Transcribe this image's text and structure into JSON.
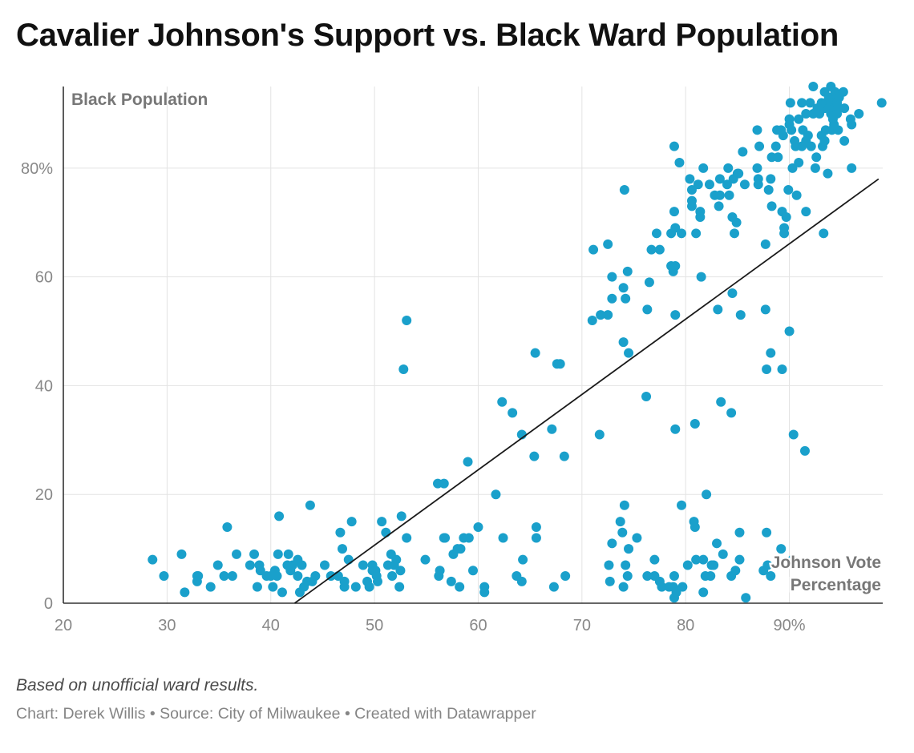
{
  "title": "Cavalier Johnson's Support vs. Black Ward Population",
  "note": "Based on unofficial ward results.",
  "credits": "Chart: Derek Willis • Source: City of Milwaukee • Created with Datawrapper",
  "colors": {
    "points": "#1aa0cb",
    "trend": "#1a1a1a",
    "grid": "#e3e3e3",
    "axis": "#333333"
  },
  "chart_data": {
    "type": "scatter",
    "xlabel": "Johnson Vote Percentage",
    "ylabel": "Black Population",
    "xlim": [
      20,
      99
    ],
    "ylim": [
      0,
      95
    ],
    "x_ticks": [
      {
        "value": 20,
        "label": "20"
      },
      {
        "value": 30,
        "label": "30"
      },
      {
        "value": 40,
        "label": "40"
      },
      {
        "value": 50,
        "label": "50"
      },
      {
        "value": 60,
        "label": "60"
      },
      {
        "value": 70,
        "label": "70"
      },
      {
        "value": 80,
        "label": "80"
      },
      {
        "value": 90,
        "label": "90%"
      }
    ],
    "y_ticks": [
      {
        "value": 0,
        "label": "0"
      },
      {
        "value": 20,
        "label": "20"
      },
      {
        "value": 40,
        "label": "40"
      },
      {
        "value": 60,
        "label": "60"
      },
      {
        "value": 80,
        "label": "80%"
      }
    ],
    "grid": true,
    "trendline": {
      "x": [
        42.3,
        98.6
      ],
      "y": [
        0,
        78
      ]
    },
    "points": [
      [
        28.6,
        8
      ],
      [
        29.7,
        5
      ],
      [
        31.4,
        9
      ],
      [
        31.7,
        2
      ],
      [
        32.9,
        5
      ],
      [
        33,
        5
      ],
      [
        32.9,
        4
      ],
      [
        34.2,
        3
      ],
      [
        34.9,
        7
      ],
      [
        35.5,
        5
      ],
      [
        35.8,
        14
      ],
      [
        36.3,
        5
      ],
      [
        36.7,
        9
      ],
      [
        38,
        7
      ],
      [
        38.4,
        9
      ],
      [
        38.7,
        3
      ],
      [
        38.9,
        7
      ],
      [
        39,
        6
      ],
      [
        39.6,
        5
      ],
      [
        40,
        5
      ],
      [
        40.2,
        3
      ],
      [
        40.4,
        6
      ],
      [
        40.6,
        5
      ],
      [
        40.7,
        9
      ],
      [
        40.8,
        16
      ],
      [
        41.1,
        2
      ],
      [
        41.6,
        7
      ],
      [
        41.7,
        9
      ],
      [
        41.9,
        6
      ],
      [
        42.1,
        7
      ],
      [
        42.6,
        8
      ],
      [
        42.6,
        5
      ],
      [
        42.8,
        2
      ],
      [
        43,
        7
      ],
      [
        43.2,
        3
      ],
      [
        43.5,
        4
      ],
      [
        43.8,
        18
      ],
      [
        44,
        4
      ],
      [
        44.3,
        5
      ],
      [
        45.2,
        7
      ],
      [
        45.8,
        5
      ],
      [
        46.5,
        5
      ],
      [
        46.7,
        13
      ],
      [
        46.9,
        10
      ],
      [
        47.1,
        4
      ],
      [
        47.1,
        3
      ],
      [
        47.5,
        8
      ],
      [
        47.8,
        15
      ],
      [
        48.2,
        3
      ],
      [
        48.9,
        7
      ],
      [
        49.3,
        4
      ],
      [
        49.5,
        3
      ],
      [
        49.8,
        6
      ],
      [
        49.8,
        7
      ],
      [
        50.1,
        6
      ],
      [
        50.2,
        5
      ],
      [
        50.3,
        4
      ],
      [
        50.7,
        15
      ],
      [
        51.1,
        13
      ],
      [
        51.3,
        7
      ],
      [
        51.6,
        9
      ],
      [
        51.7,
        5
      ],
      [
        51.9,
        7
      ],
      [
        52.1,
        8
      ],
      [
        52.4,
        3
      ],
      [
        52.5,
        6
      ],
      [
        52.6,
        16
      ],
      [
        52.8,
        43
      ],
      [
        53.1,
        52
      ],
      [
        53.1,
        12
      ],
      [
        54.9,
        8
      ],
      [
        56.1,
        22
      ],
      [
        56.2,
        5
      ],
      [
        56.3,
        6
      ],
      [
        56.7,
        22
      ],
      [
        56.7,
        12
      ],
      [
        56.8,
        12
      ],
      [
        57.4,
        4
      ],
      [
        57.6,
        9
      ],
      [
        58,
        10
      ],
      [
        58.2,
        3
      ],
      [
        58.3,
        10
      ],
      [
        58.6,
        12
      ],
      [
        59,
        26
      ],
      [
        59.1,
        12
      ],
      [
        59.5,
        6
      ],
      [
        60,
        14
      ],
      [
        60.6,
        3
      ],
      [
        60.6,
        2
      ],
      [
        61.7,
        20
      ],
      [
        62.3,
        37
      ],
      [
        62.4,
        12
      ],
      [
        63.3,
        35
      ],
      [
        63.7,
        5
      ],
      [
        64.2,
        31
      ],
      [
        64.2,
        4
      ],
      [
        64.3,
        8
      ],
      [
        65.4,
        27
      ],
      [
        65.5,
        46
      ],
      [
        65.6,
        14
      ],
      [
        65.6,
        12
      ],
      [
        67.1,
        32
      ],
      [
        67.3,
        3
      ],
      [
        67.6,
        44
      ],
      [
        67.9,
        44
      ],
      [
        68.3,
        27
      ],
      [
        68.4,
        5
      ],
      [
        71,
        52
      ],
      [
        71.1,
        65
      ],
      [
        71.7,
        31
      ],
      [
        71.8,
        53
      ],
      [
        72.5,
        53
      ],
      [
        72.5,
        66
      ],
      [
        72.7,
        4
      ],
      [
        72.9,
        56
      ],
      [
        72.9,
        11
      ],
      [
        72.9,
        60
      ],
      [
        72.6,
        7
      ],
      [
        73.7,
        15
      ],
      [
        73.9,
        13
      ],
      [
        74,
        3
      ],
      [
        74.1,
        18
      ],
      [
        74,
        58
      ],
      [
        74,
        48
      ],
      [
        74.1,
        76
      ],
      [
        74.2,
        56
      ],
      [
        74.2,
        7
      ],
      [
        74.5,
        10
      ],
      [
        74.4,
        61
      ],
      [
        74.4,
        5
      ],
      [
        74.5,
        46
      ],
      [
        75.3,
        12
      ],
      [
        76.2,
        38
      ],
      [
        76.3,
        5
      ],
      [
        76.3,
        54
      ],
      [
        76.5,
        59
      ],
      [
        76.7,
        65
      ],
      [
        77,
        8
      ],
      [
        77,
        5
      ],
      [
        77.2,
        68
      ],
      [
        77.5,
        65
      ],
      [
        77.5,
        4
      ],
      [
        77.7,
        3
      ],
      [
        78.4,
        3
      ],
      [
        78.6,
        68
      ],
      [
        78.6,
        62
      ],
      [
        78.9,
        84
      ],
      [
        78.9,
        5
      ],
      [
        78.9,
        1
      ],
      [
        78.9,
        72
      ],
      [
        78.8,
        61
      ],
      [
        78.8,
        3
      ],
      [
        79,
        62
      ],
      [
        79,
        32
      ],
      [
        79,
        53
      ],
      [
        79,
        69
      ],
      [
        79.1,
        2
      ],
      [
        79.4,
        81
      ],
      [
        79.6,
        68
      ],
      [
        79.6,
        18
      ],
      [
        79.7,
        3
      ],
      [
        80.2,
        7
      ],
      [
        80.4,
        78
      ],
      [
        80.6,
        76
      ],
      [
        80.6,
        73
      ],
      [
        80.6,
        74
      ],
      [
        80.9,
        33
      ],
      [
        80.8,
        15
      ],
      [
        80.9,
        14
      ],
      [
        81,
        8
      ],
      [
        81,
        68
      ],
      [
        81.2,
        77
      ],
      [
        81.4,
        72
      ],
      [
        81.4,
        71
      ],
      [
        81.5,
        60
      ],
      [
        81.7,
        80
      ],
      [
        81.7,
        8
      ],
      [
        81.7,
        2
      ],
      [
        81.9,
        5
      ],
      [
        82,
        20
      ],
      [
        82.3,
        77
      ],
      [
        82.5,
        7
      ],
      [
        82.4,
        5
      ],
      [
        82.7,
        7
      ],
      [
        82.8,
        75
      ],
      [
        83,
        11
      ],
      [
        83.1,
        54
      ],
      [
        83.2,
        73
      ],
      [
        83.3,
        75
      ],
      [
        83.3,
        78
      ],
      [
        83.4,
        37
      ],
      [
        83.6,
        9
      ],
      [
        84,
        77
      ],
      [
        84.1,
        80
      ],
      [
        84.2,
        75
      ],
      [
        84.4,
        35
      ],
      [
        84.4,
        5
      ],
      [
        84.5,
        71
      ],
      [
        84.5,
        57
      ],
      [
        84.6,
        78
      ],
      [
        84.7,
        68
      ],
      [
        84.9,
        70
      ],
      [
        84.8,
        6
      ],
      [
        85,
        79
      ],
      [
        85.1,
        79
      ],
      [
        85.3,
        53
      ],
      [
        85.2,
        13
      ],
      [
        85.2,
        8
      ],
      [
        85.5,
        83
      ],
      [
        85.7,
        77
      ],
      [
        85.8,
        1
      ],
      [
        86.9,
        87
      ],
      [
        86.9,
        80
      ],
      [
        87.1,
        84
      ],
      [
        87,
        77
      ],
      [
        87,
        78
      ],
      [
        87.5,
        6
      ],
      [
        87.7,
        66
      ],
      [
        87.7,
        54
      ],
      [
        87.8,
        13
      ],
      [
        87.8,
        43
      ],
      [
        87.9,
        7
      ],
      [
        88.2,
        5
      ],
      [
        88.2,
        78
      ],
      [
        88,
        76
      ],
      [
        88.2,
        46
      ],
      [
        88.3,
        73
      ],
      [
        88.3,
        82
      ],
      [
        88.7,
        84
      ],
      [
        88.9,
        82
      ],
      [
        88.8,
        87
      ],
      [
        89.2,
        10
      ],
      [
        89.2,
        87
      ],
      [
        89.3,
        72
      ],
      [
        89.3,
        43
      ],
      [
        89.4,
        86
      ],
      [
        89.5,
        68
      ],
      [
        89.5,
        69
      ],
      [
        89.7,
        71
      ],
      [
        89.9,
        76
      ],
      [
        90,
        89
      ],
      [
        90,
        88
      ],
      [
        90,
        50
      ],
      [
        90.1,
        92
      ],
      [
        90.2,
        87
      ],
      [
        90.3,
        80
      ],
      [
        90.3,
        8
      ],
      [
        90.4,
        31
      ],
      [
        90.5,
        85
      ],
      [
        90.6,
        84
      ],
      [
        90.7,
        75
      ],
      [
        90.9,
        89
      ],
      [
        90.9,
        81
      ],
      [
        91.2,
        84
      ],
      [
        91.2,
        92
      ],
      [
        91.3,
        87
      ],
      [
        91.5,
        28
      ],
      [
        91.6,
        90
      ],
      [
        91.6,
        72
      ],
      [
        91.6,
        85
      ],
      [
        91.8,
        86
      ],
      [
        92,
        92
      ],
      [
        92.1,
        84
      ],
      [
        92.3,
        95
      ],
      [
        92.3,
        90
      ],
      [
        92.5,
        80
      ],
      [
        92.6,
        82
      ],
      [
        92.7,
        91
      ],
      [
        92.9,
        90
      ],
      [
        93.1,
        92
      ],
      [
        93.1,
        86
      ],
      [
        93.2,
        84
      ],
      [
        93.3,
        68
      ],
      [
        93.4,
        94
      ],
      [
        93.4,
        91
      ],
      [
        93.4,
        85
      ],
      [
        93.4,
        85
      ],
      [
        93.5,
        92
      ],
      [
        93.5,
        87
      ],
      [
        93.7,
        79
      ],
      [
        93.8,
        91
      ],
      [
        93.8,
        93
      ],
      [
        94,
        95
      ],
      [
        94,
        92
      ],
      [
        94,
        90
      ],
      [
        94.1,
        87
      ],
      [
        94.2,
        89
      ],
      [
        94.3,
        91
      ],
      [
        94.3,
        88
      ],
      [
        94.4,
        94
      ],
      [
        94.5,
        91
      ],
      [
        94.6,
        93
      ],
      [
        94.6,
        90
      ],
      [
        94.6,
        92
      ],
      [
        94.7,
        87
      ],
      [
        94.8,
        93
      ],
      [
        95.2,
        94
      ],
      [
        95.3,
        91
      ],
      [
        95.3,
        85
      ],
      [
        95.9,
        89
      ],
      [
        96,
        80
      ],
      [
        96,
        88
      ],
      [
        96.7,
        90
      ],
      [
        98.9,
        92
      ]
    ]
  }
}
